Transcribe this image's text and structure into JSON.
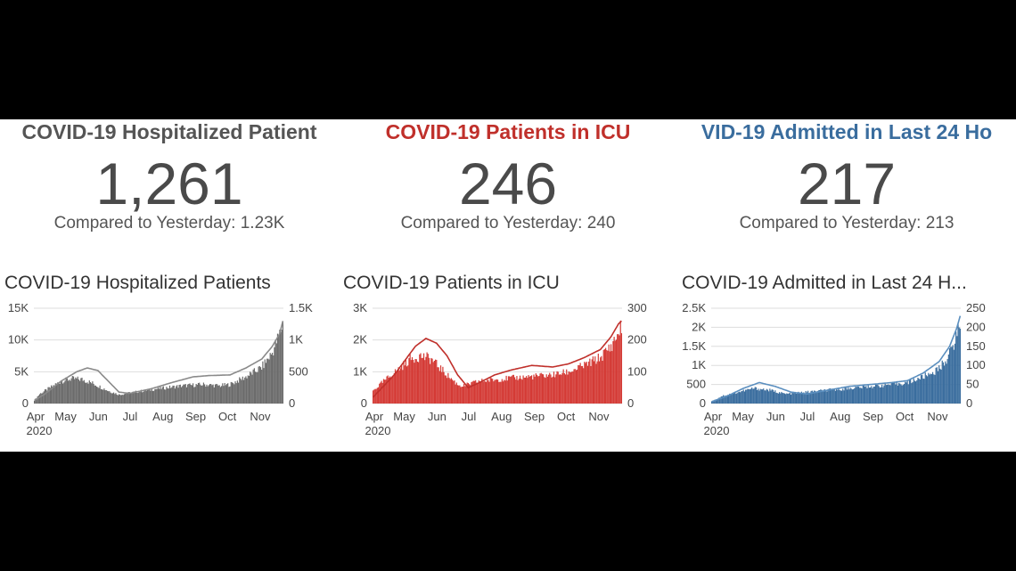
{
  "panels": [
    {
      "title": "COVID-19 Hospitalized Patient",
      "value": "1,261",
      "compare": "Compared to Yesterday: 1.23K",
      "color": "#555555",
      "chart_title": "COVID-19 Hospitalized Patients"
    },
    {
      "title": "COVID-19 Patients in ICU",
      "value": "246",
      "compare": "Compared to Yesterday: 240",
      "color": "#c0302b",
      "chart_title": "COVID-19 Patients in ICU"
    },
    {
      "title": "VID-19 Admitted in Last 24 Ho",
      "value": "217",
      "compare": "Compared to Yesterday: 213",
      "color": "#3a6d9e",
      "chart_title": "COVID-19 Admitted in Last 24 H..."
    }
  ],
  "chart_data": [
    {
      "type": "bar",
      "bar_color": "#6b6b6b",
      "line_color": "#8a8a8a",
      "x_ticks": [
        "Apr",
        "May",
        "Jun",
        "Jul",
        "Aug",
        "Sep",
        "Oct",
        "Nov"
      ],
      "year_label": "2020",
      "left_ticks": [
        "0",
        "5K",
        "10K",
        "15K"
      ],
      "right_ticks": [
        "0",
        "500",
        "1K",
        "1.5K"
      ],
      "left_range": [
        0,
        15000
      ],
      "right_range": [
        0,
        1500
      ],
      "bars_axis": "right",
      "line_axis": "left",
      "bar_keypoints": [
        [
          0,
          50
        ],
        [
          5,
          150
        ],
        [
          15,
          250
        ],
        [
          25,
          350
        ],
        [
          35,
          390
        ],
        [
          45,
          380
        ],
        [
          55,
          320
        ],
        [
          70,
          200
        ],
        [
          80,
          140
        ],
        [
          95,
          180
        ],
        [
          115,
          230
        ],
        [
          140,
          280
        ],
        [
          160,
          300
        ],
        [
          175,
          280
        ],
        [
          185,
          300
        ],
        [
          200,
          420
        ],
        [
          215,
          570
        ],
        [
          225,
          800
        ],
        [
          232,
          1100
        ],
        [
          235,
          1261
        ]
      ],
      "line_keypoints": [
        [
          0,
          500
        ],
        [
          10,
          1500
        ],
        [
          25,
          3500
        ],
        [
          40,
          5000
        ],
        [
          50,
          5600
        ],
        [
          60,
          5200
        ],
        [
          70,
          3500
        ],
        [
          80,
          1800
        ],
        [
          90,
          1600
        ],
        [
          110,
          2300
        ],
        [
          130,
          3300
        ],
        [
          150,
          4200
        ],
        [
          165,
          4400
        ],
        [
          185,
          4500
        ],
        [
          200,
          5600
        ],
        [
          215,
          7000
        ],
        [
          225,
          9000
        ],
        [
          232,
          11000
        ],
        [
          235,
          13000
        ]
      ],
      "grid": true
    },
    {
      "type": "bar",
      "bar_color": "#d43a35",
      "line_color": "#c0302b",
      "x_ticks": [
        "Apr",
        "May",
        "Jun",
        "Jul",
        "Aug",
        "Sep",
        "Oct",
        "Nov"
      ],
      "year_label": "2020",
      "left_ticks": [
        "0",
        "1K",
        "2K",
        "3K"
      ],
      "right_ticks": [
        "0",
        "100",
        "200",
        "300"
      ],
      "left_range": [
        0,
        3000
      ],
      "right_range": [
        0,
        300
      ],
      "bars_axis": "right",
      "line_axis": "left",
      "bar_keypoints": [
        [
          0,
          40
        ],
        [
          10,
          70
        ],
        [
          25,
          110
        ],
        [
          35,
          140
        ],
        [
          45,
          150
        ],
        [
          55,
          140
        ],
        [
          70,
          90
        ],
        [
          80,
          60
        ],
        [
          85,
          55
        ],
        [
          100,
          70
        ],
        [
          115,
          75
        ],
        [
          130,
          80
        ],
        [
          150,
          85
        ],
        [
          170,
          90
        ],
        [
          185,
          100
        ],
        [
          200,
          120
        ],
        [
          215,
          145
        ],
        [
          225,
          180
        ],
        [
          232,
          220
        ],
        [
          235,
          246
        ]
      ],
      "line_keypoints": [
        [
          0,
          200
        ],
        [
          20,
          900
        ],
        [
          40,
          1800
        ],
        [
          50,
          2050
        ],
        [
          60,
          1900
        ],
        [
          70,
          1500
        ],
        [
          80,
          900
        ],
        [
          90,
          500
        ],
        [
          100,
          650
        ],
        [
          115,
          900
        ],
        [
          130,
          1050
        ],
        [
          150,
          1200
        ],
        [
          170,
          1150
        ],
        [
          185,
          1250
        ],
        [
          200,
          1450
        ],
        [
          215,
          1700
        ],
        [
          225,
          2100
        ],
        [
          232,
          2500
        ],
        [
          235,
          2600
        ]
      ],
      "grid": true
    },
    {
      "type": "bar",
      "bar_color": "#3a6d9e",
      "line_color": "#5b8fbf",
      "x_ticks": [
        "Apr",
        "May",
        "Jun",
        "Jul",
        "Aug",
        "Sep",
        "Oct",
        "Nov"
      ],
      "year_label": "2020",
      "left_ticks": [
        "0",
        "500",
        "1K",
        "1.5K",
        "2K",
        "2.5K"
      ],
      "right_ticks": [
        "0",
        "50",
        "100",
        "150",
        "200",
        "250"
      ],
      "left_range": [
        0,
        2500
      ],
      "right_range": [
        0,
        250
      ],
      "bars_axis": "right",
      "line_axis": "left",
      "bar_keypoints": [
        [
          0,
          5
        ],
        [
          10,
          20
        ],
        [
          25,
          30
        ],
        [
          40,
          40
        ],
        [
          55,
          35
        ],
        [
          70,
          25
        ],
        [
          90,
          30
        ],
        [
          110,
          35
        ],
        [
          130,
          40
        ],
        [
          150,
          45
        ],
        [
          170,
          50
        ],
        [
          185,
          55
        ],
        [
          200,
          70
        ],
        [
          215,
          90
        ],
        [
          225,
          130
        ],
        [
          232,
          180
        ],
        [
          235,
          217
        ]
      ],
      "line_keypoints": [
        [
          0,
          50
        ],
        [
          15,
          200
        ],
        [
          30,
          400
        ],
        [
          45,
          550
        ],
        [
          60,
          450
        ],
        [
          75,
          300
        ],
        [
          90,
          250
        ],
        [
          110,
          350
        ],
        [
          130,
          450
        ],
        [
          150,
          500
        ],
        [
          170,
          550
        ],
        [
          185,
          600
        ],
        [
          200,
          800
        ],
        [
          215,
          1100
        ],
        [
          225,
          1500
        ],
        [
          232,
          2000
        ],
        [
          235,
          2300
        ]
      ],
      "grid": true
    }
  ]
}
